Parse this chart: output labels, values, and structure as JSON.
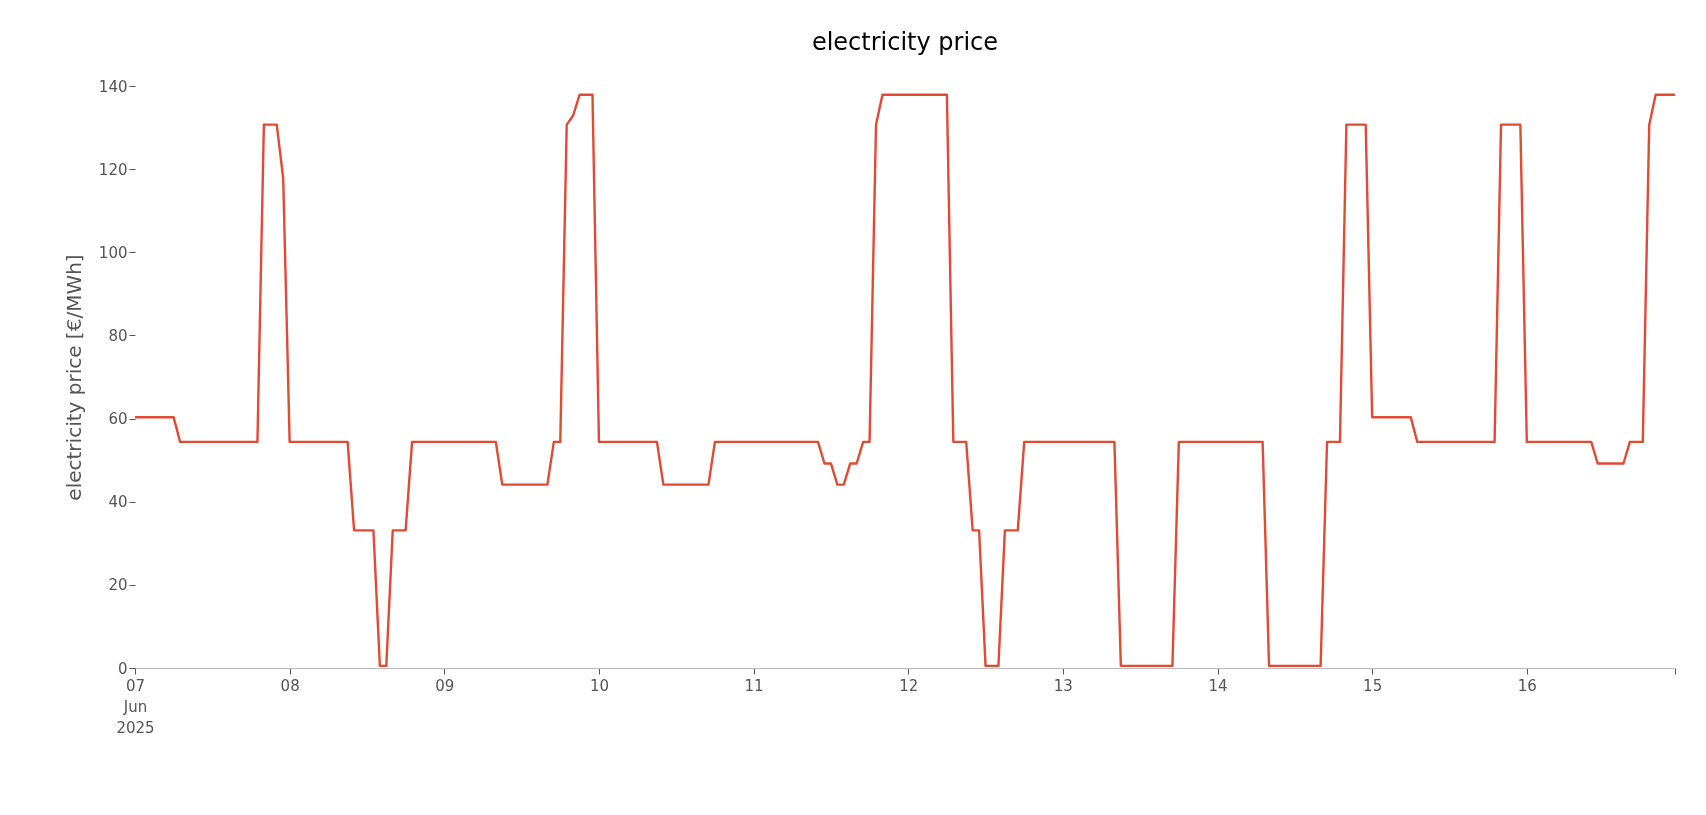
{
  "chart_data": {
    "type": "line",
    "title": "electricity price",
    "ylabel": "electricity price [€/MWh]",
    "x": [
      "2025-06-07T00:00",
      "2025-06-07T06:00",
      "2025-06-07T07:00",
      "2025-06-07T19:00",
      "2025-06-07T20:00",
      "2025-06-07T22:00",
      "2025-06-07T23:00",
      "2025-06-08T00:00",
      "2025-06-08T09:00",
      "2025-06-08T10:00",
      "2025-06-08T13:00",
      "2025-06-08T14:00",
      "2025-06-08T15:00",
      "2025-06-08T16:00",
      "2025-06-08T18:00",
      "2025-06-08T19:00",
      "2025-06-09T08:00",
      "2025-06-09T09:00",
      "2025-06-09T16:00",
      "2025-06-09T17:00",
      "2025-06-09T18:00",
      "2025-06-09T19:00",
      "2025-06-09T20:00",
      "2025-06-09T21:00",
      "2025-06-09T23:00",
      "2025-06-10T00:00",
      "2025-06-10T09:00",
      "2025-06-10T10:00",
      "2025-06-10T17:00",
      "2025-06-10T18:00",
      "2025-06-11T10:00",
      "2025-06-11T11:00",
      "2025-06-11T12:00",
      "2025-06-11T13:00",
      "2025-06-11T14:00",
      "2025-06-11T15:00",
      "2025-06-11T16:00",
      "2025-06-11T17:00",
      "2025-06-11T18:00",
      "2025-06-11T19:00",
      "2025-06-11T20:00",
      "2025-06-12T06:00",
      "2025-06-12T07:00",
      "2025-06-12T09:00",
      "2025-06-12T10:00",
      "2025-06-12T11:00",
      "2025-06-12T12:00",
      "2025-06-12T14:00",
      "2025-06-12T15:00",
      "2025-06-12T17:00",
      "2025-06-12T18:00",
      "2025-06-13T08:00",
      "2025-06-13T09:00",
      "2025-06-13T17:00",
      "2025-06-13T18:00",
      "2025-06-14T07:00",
      "2025-06-14T08:00",
      "2025-06-14T16:00",
      "2025-06-14T17:00",
      "2025-06-14T19:00",
      "2025-06-14T20:00",
      "2025-06-14T23:00",
      "2025-06-15T00:00",
      "2025-06-15T06:00",
      "2025-06-15T07:00",
      "2025-06-15T19:00",
      "2025-06-15T20:00",
      "2025-06-15T23:00",
      "2025-06-16T00:00",
      "2025-06-16T10:00",
      "2025-06-16T11:00",
      "2025-06-16T15:00",
      "2025-06-16T16:00",
      "2025-06-16T18:00",
      "2025-06-16T19:00",
      "2025-06-16T20:00",
      "2025-06-16T23:00"
    ],
    "series": [
      {
        "color": "#e24a33",
        "values": [
          60.3,
          60.3,
          54.4,
          54.4,
          130.7,
          130.7,
          117.8,
          54.4,
          54.4,
          33.1,
          33.1,
          0.5,
          0.5,
          33.1,
          33.1,
          54.4,
          54.4,
          44.1,
          44.1,
          54.4,
          54.4,
          130.7,
          132.9,
          137.9,
          137.9,
          54.4,
          54.4,
          44.1,
          44.1,
          54.4,
          54.4,
          49.2,
          49.2,
          44.1,
          44.1,
          49.2,
          49.2,
          54.4,
          54.4,
          130.7,
          137.9,
          137.9,
          54.4,
          54.4,
          33.1,
          33.1,
          0.5,
          0.5,
          33.1,
          33.1,
          54.4,
          54.4,
          0.5,
          0.5,
          54.4,
          54.4,
          0.5,
          0.5,
          54.4,
          54.4,
          130.7,
          130.7,
          60.3,
          60.3,
          54.4,
          54.4,
          130.7,
          130.7,
          54.4,
          54.4,
          49.2,
          49.2,
          54.4,
          54.4,
          130.7,
          137.9,
          137.9
        ]
      }
    ],
    "xticks": [
      {
        "value": "2025-06-07T00:00",
        "label": "07\nJun\n2025"
      },
      {
        "value": "2025-06-08T00:00",
        "label": "08"
      },
      {
        "value": "2025-06-09T00:00",
        "label": "09"
      },
      {
        "value": "2025-06-10T00:00",
        "label": "10"
      },
      {
        "value": "2025-06-11T00:00",
        "label": "11"
      },
      {
        "value": "2025-06-12T00:00",
        "label": "12"
      },
      {
        "value": "2025-06-13T00:00",
        "label": "13"
      },
      {
        "value": "2025-06-14T00:00",
        "label": "14"
      },
      {
        "value": "2025-06-15T00:00",
        "label": "15"
      },
      {
        "value": "2025-06-16T00:00",
        "label": "16"
      },
      {
        "value": "2025-06-16T23:00",
        "label": null
      }
    ],
    "xlim": [
      "2025-06-07T00:00",
      "2025-06-16T23:00"
    ],
    "ylim": [
      0,
      140
    ],
    "yticks": [
      0,
      20,
      40,
      60,
      80,
      100,
      120,
      140
    ],
    "grid": false,
    "legend": false,
    "marker": "none",
    "line_style": "solid"
  }
}
